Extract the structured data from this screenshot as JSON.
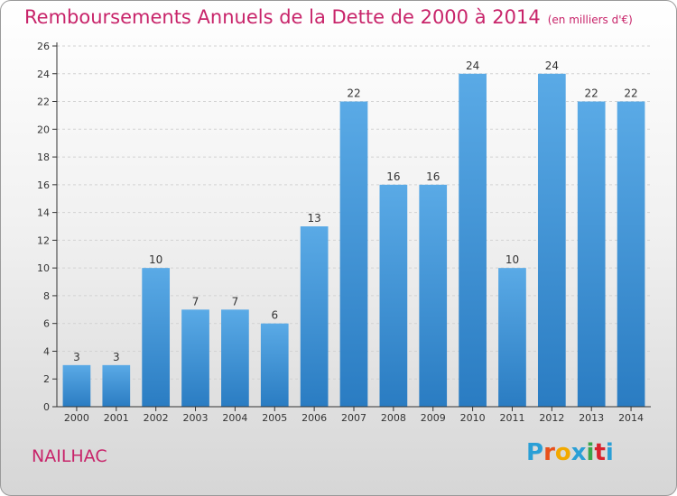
{
  "title": "Remboursements Annuels de la Dette de 2000 à 2014",
  "title_unit": "(en milliers d'€)",
  "town": "NAILHAC",
  "logo_text": "Proxiti",
  "logo_colors": [
    "#2a9fd6",
    "#e8501a",
    "#f2a900",
    "#2a9fd6",
    "#3ba54a",
    "#d9232d",
    "#2a9fd6"
  ],
  "colors": {
    "accent": "#c8246a",
    "bar_top": "#5aaae6",
    "bar_bottom": "#2a7cc2"
  },
  "chart_data": {
    "type": "bar",
    "categories": [
      "2000",
      "2001",
      "2002",
      "2003",
      "2004",
      "2005",
      "2006",
      "2007",
      "2008",
      "2009",
      "2010",
      "2011",
      "2012",
      "2013",
      "2014"
    ],
    "values": [
      3,
      3,
      10,
      7,
      7,
      6,
      13,
      22,
      16,
      16,
      24,
      10,
      24,
      22,
      22
    ],
    "value_labels": [
      "3",
      "3",
      "10",
      "7",
      "7",
      "6",
      "13",
      "22",
      "16",
      "16",
      "24",
      "10",
      "24",
      "22",
      "22"
    ],
    "ylim": [
      0,
      26
    ],
    "yticks": [
      0,
      2,
      4,
      6,
      8,
      10,
      12,
      14,
      16,
      18,
      20,
      22,
      24,
      26
    ],
    "ytick_labels": [
      "0",
      "2",
      "4",
      "6",
      "8",
      "10",
      "12",
      "14",
      "16",
      "18",
      "20",
      "22",
      "24",
      "26"
    ],
    "grid": true,
    "legend": "none"
  }
}
